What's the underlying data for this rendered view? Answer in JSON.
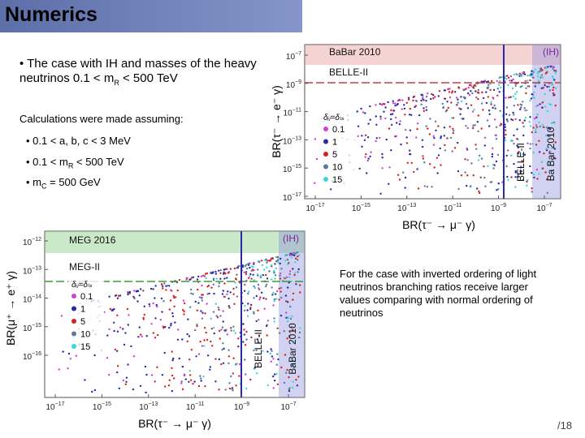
{
  "header": {
    "title": "Numerics"
  },
  "intro": {
    "parts": [
      "• The case with IH and masses of the heavy neutrinos 0.1 < m",
      "R",
      " < 500 TeV"
    ]
  },
  "assumptions": {
    "heading": "Calculations were made assuming:",
    "bullets": [
      [
        "• 0.1 < a, b, c < 3 MeV"
      ],
      [
        "• 0.1 < m",
        "R",
        " < 500 TeV"
      ],
      [
        "• m",
        "C",
        " = 500 GeV"
      ]
    ]
  },
  "note": "For the case with inverted ordering of light neutrinos branching ratios receive larger values comparing with normal ordering of neutrinos",
  "page": "/18",
  "figures": [
    {
      "y_label": "BR(τ⁻ → e⁻ γ)",
      "x_label": "BR(τ⁻ → μ⁻ γ)",
      "yticks": [
        {
          "base": "10",
          "exp": "−7"
        },
        {
          "base": "10",
          "exp": "−9"
        },
        {
          "base": "10",
          "exp": "−11"
        },
        {
          "base": "10",
          "exp": "−13"
        },
        {
          "base": "10",
          "exp": "−15"
        },
        {
          "base": "10",
          "exp": "−17"
        }
      ],
      "xticks": [
        {
          "base": "10",
          "exp": "−17"
        },
        {
          "base": "10",
          "exp": "−15"
        },
        {
          "base": "10",
          "exp": "−13"
        },
        {
          "base": "10",
          "exp": "−11"
        },
        {
          "base": "10",
          "exp": "−9"
        },
        {
          "base": "10",
          "exp": "−7"
        }
      ],
      "h_band": "BaBar 2010",
      "h_line": "BELLE-II",
      "v_band": "Ba Bar 2010",
      "v_line": "BELLE-II",
      "tag": "(IH)",
      "legend_title": "δᵢⱼ=δₗₛ",
      "legend": [
        "0.1",
        "1",
        "5",
        "10",
        "15"
      ]
    },
    {
      "y_label": "BR(μ⁺ → e⁺ γ)",
      "x_label": "BR(τ⁻ → μ⁻ γ)",
      "yticks": [
        {
          "base": "10",
          "exp": "−12"
        },
        {
          "base": "10",
          "exp": "−13"
        },
        {
          "base": "10",
          "exp": "−14"
        },
        {
          "base": "10",
          "exp": "−15"
        },
        {
          "base": "10",
          "exp": "−16"
        }
      ],
      "xticks": [
        {
          "base": "10",
          "exp": "−17"
        },
        {
          "base": "10",
          "exp": "−15"
        },
        {
          "base": "10",
          "exp": "−13"
        },
        {
          "base": "10",
          "exp": "−11"
        },
        {
          "base": "10",
          "exp": "−9"
        },
        {
          "base": "10",
          "exp": "−7"
        }
      ],
      "h_band": "MEG 2016",
      "h_line": "MEG-II",
      "v_band": "BaBar 2010",
      "v_line": "BELLE-II",
      "tag": "(IH)",
      "legend_title": "δᵢⱼ=δₗₛ",
      "legend": [
        "0.1",
        "1",
        "5",
        "10",
        "15"
      ]
    }
  ]
}
